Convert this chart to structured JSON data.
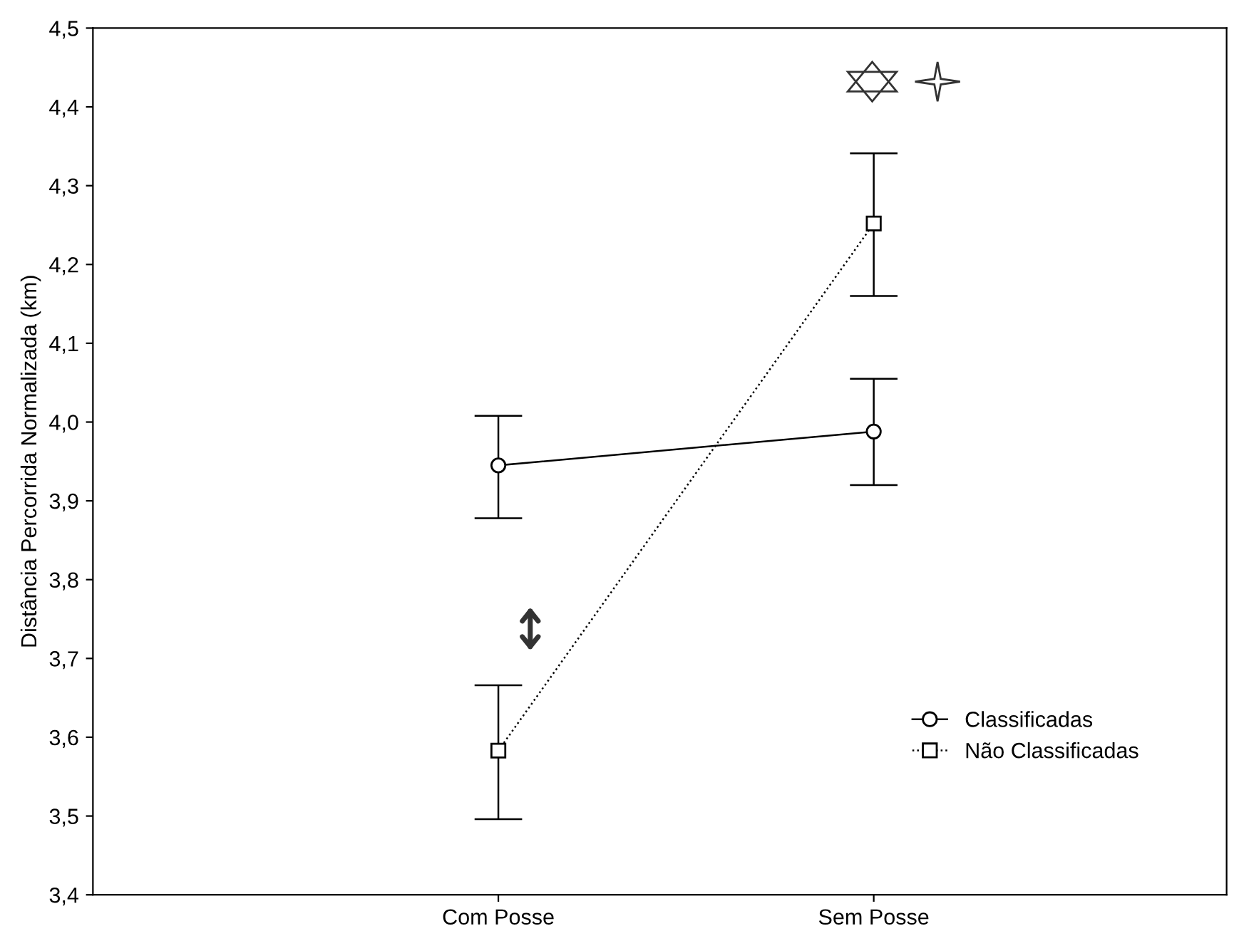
{
  "chart_data": {
    "type": "line",
    "ylabel": "Distância Percorrida Normalizada (km)",
    "categories": [
      "Com Posse",
      "Sem Posse"
    ],
    "series": [
      {
        "name": "Classificadas",
        "color": "#000000",
        "values": [
          3.945,
          3.988
        ],
        "errors": [
          [
            3.878,
            4.008
          ],
          [
            3.92,
            4.055
          ]
        ],
        "marker": "circle",
        "line_style": "solid"
      },
      {
        "name": "Não Classificadas",
        "color": "#000000",
        "values": [
          3.583,
          4.252
        ],
        "errors": [
          [
            3.496,
            3.666
          ],
          [
            4.16,
            4.341
          ]
        ],
        "marker": "square",
        "line_style": "dotted"
      }
    ],
    "ylim": [
      3.4,
      4.5
    ],
    "yticks": [
      {
        "value": 3.4,
        "label": "3,4"
      },
      {
        "value": 3.5,
        "label": "3,5"
      },
      {
        "value": 3.6,
        "label": "3,6"
      },
      {
        "value": 3.7,
        "label": "3,7"
      },
      {
        "value": 3.8,
        "label": "3,8"
      },
      {
        "value": 3.9,
        "label": "3,9"
      },
      {
        "value": 4.0,
        "label": "4,0"
      },
      {
        "value": 4.1,
        "label": "4,1"
      },
      {
        "value": 4.2,
        "label": "4,2"
      },
      {
        "value": 4.3,
        "label": "4,3"
      },
      {
        "value": 4.4,
        "label": "4,4"
      },
      {
        "value": 4.5,
        "label": "4,5"
      }
    ],
    "grid": false,
    "legend": "bottom right"
  }
}
